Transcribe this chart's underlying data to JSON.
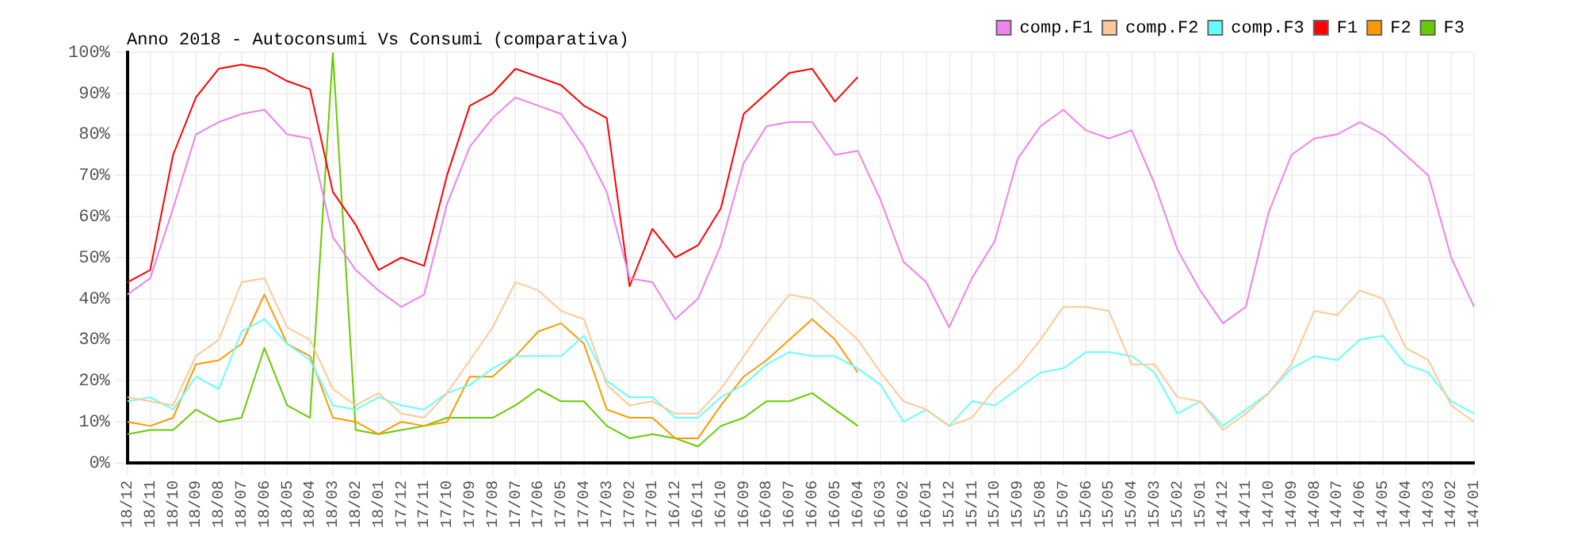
{
  "chart_data": {
    "type": "line",
    "title": "Anno 2018 - Autoconsumi Vs Consumi (comparativa)",
    "categories": [
      "18/12",
      "18/11",
      "18/10",
      "18/09",
      "18/08",
      "18/07",
      "18/06",
      "18/05",
      "18/04",
      "18/03",
      "18/02",
      "18/01",
      "17/12",
      "17/11",
      "17/10",
      "17/09",
      "17/08",
      "17/07",
      "17/06",
      "17/05",
      "17/04",
      "17/03",
      "17/02",
      "17/01",
      "16/12",
      "16/11",
      "16/10",
      "16/09",
      "16/08",
      "16/07",
      "16/06",
      "16/05",
      "16/04",
      "16/03",
      "16/02",
      "16/01",
      "15/12",
      "15/11",
      "15/10",
      "15/09",
      "15/08",
      "15/07",
      "15/06",
      "15/05",
      "15/04",
      "15/03",
      "15/02",
      "15/01",
      "14/12",
      "14/11",
      "14/10",
      "14/09",
      "14/08",
      "14/07",
      "14/06",
      "14/05",
      "14/04",
      "14/03",
      "14/02",
      "14/01"
    ],
    "series": [
      {
        "name": "comp.F1",
        "color": "#ee82ee",
        "values": [
          41,
          45,
          62,
          80,
          83,
          85,
          86,
          80,
          79,
          55,
          47,
          42,
          38,
          41,
          63,
          77,
          84,
          89,
          87,
          85,
          77,
          66,
          45,
          44,
          35,
          40,
          53,
          73,
          82,
          83,
          83,
          75,
          76,
          64,
          49,
          44,
          33,
          45,
          54,
          74,
          82,
          86,
          81,
          79,
          81,
          68,
          52,
          42,
          34,
          38,
          61,
          75,
          79,
          80,
          83,
          80,
          75,
          70,
          50,
          38
        ]
      },
      {
        "name": "comp.F2",
        "color": "#ffc896",
        "values": [
          16,
          15,
          14,
          26,
          30,
          44,
          45,
          33,
          30,
          18,
          14,
          17,
          12,
          11,
          17,
          25,
          33,
          44,
          42,
          37,
          35,
          19,
          14,
          15,
          12,
          12,
          18,
          26,
          34,
          41,
          40,
          35,
          30,
          22,
          15,
          13,
          9,
          11,
          18,
          23,
          30,
          38,
          38,
          37,
          24,
          24,
          16,
          15,
          8,
          12,
          17,
          24,
          37,
          36,
          42,
          40,
          28,
          25,
          14,
          10
        ]
      },
      {
        "name": "comp.F3",
        "color": "#66ffff",
        "values": [
          15,
          16,
          13,
          21,
          18,
          32,
          35,
          29,
          25,
          14,
          13,
          16,
          14,
          13,
          17,
          19,
          23,
          26,
          26,
          26,
          31,
          20,
          16,
          16,
          11,
          11,
          16,
          19,
          24,
          27,
          26,
          26,
          23,
          19,
          10,
          13,
          9,
          15,
          14,
          18,
          22,
          23,
          27,
          27,
          26,
          22,
          12,
          15,
          9,
          13,
          17,
          23,
          26,
          25,
          30,
          31,
          24,
          22,
          15,
          12
        ]
      },
      {
        "name": "F1",
        "color": "#ff0000",
        "values": [
          44,
          47,
          75,
          89,
          96,
          97,
          96,
          93,
          91,
          66,
          58,
          47,
          50,
          48,
          70,
          87,
          90,
          96,
          94,
          92,
          87,
          84,
          43,
          57,
          50,
          53,
          62,
          85,
          90,
          95,
          96,
          88,
          94,
          null,
          null,
          null,
          null,
          null,
          null,
          null,
          null,
          null,
          null,
          null,
          null,
          null,
          null,
          null,
          null,
          null,
          null,
          null,
          null,
          null,
          null,
          null,
          null,
          null,
          null,
          null
        ]
      },
      {
        "name": "F2",
        "color": "#ff9900",
        "values": [
          10,
          9,
          11,
          24,
          25,
          29,
          41,
          29,
          26,
          11,
          10,
          7,
          10,
          9,
          10,
          21,
          21,
          26,
          32,
          34,
          29,
          13,
          11,
          11,
          6,
          6,
          14,
          21,
          25,
          30,
          35,
          30,
          22,
          null,
          null,
          null,
          null,
          null,
          null,
          null,
          null,
          null,
          null,
          null,
          null,
          null,
          null,
          null,
          null,
          null,
          null,
          null,
          null,
          null,
          null,
          null,
          null,
          null,
          null,
          null
        ]
      },
      {
        "name": "F3",
        "color": "#66cc00",
        "values": [
          7,
          8,
          8,
          13,
          10,
          11,
          28,
          14,
          11,
          100,
          8,
          7,
          8,
          9,
          11,
          11,
          11,
          14,
          18,
          15,
          15,
          9,
          6,
          7,
          6,
          4,
          9,
          11,
          15,
          15,
          17,
          13,
          9,
          null,
          null,
          null,
          null,
          null,
          null,
          null,
          null,
          null,
          null,
          null,
          null,
          null,
          null,
          null,
          null,
          null,
          null,
          null,
          null,
          null,
          null,
          null,
          null,
          null,
          null,
          null
        ]
      }
    ],
    "ylim": [
      0,
      100
    ],
    "yticks": [
      {
        "value": 0,
        "label": "0%"
      },
      {
        "value": 10,
        "label": "10%"
      },
      {
        "value": 20,
        "label": "20%"
      },
      {
        "value": 30,
        "label": "30%"
      },
      {
        "value": 40,
        "label": "40%"
      },
      {
        "value": 50,
        "label": "50%"
      },
      {
        "value": 60,
        "label": "60%"
      },
      {
        "value": 70,
        "label": "70%"
      },
      {
        "value": 80,
        "label": "80%"
      },
      {
        "value": 90,
        "label": "90%"
      },
      {
        "value": 100,
        "label": "100%"
      }
    ],
    "grid": true,
    "legend": "top right",
    "marker": "none",
    "line_style": "solid"
  }
}
